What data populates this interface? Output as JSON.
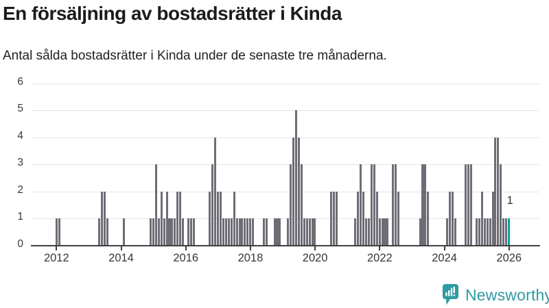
{
  "header": {
    "title": "En försäljning av bostadsrätter i Kinda",
    "subtitle": "Antal sålda bostadsrätter i Kinda under de senaste tre månaderna."
  },
  "logo": {
    "text": "Newsworthy",
    "color": "#2d9ba1"
  },
  "chart_data": {
    "type": "bar",
    "title": "En försäljning av bostadsrätter i Kinda",
    "subtitle": "Antal sålda bostadsrätter i Kinda under de senaste tre månaderna.",
    "xlabel": "",
    "ylabel": "",
    "ylim": [
      0,
      6
    ],
    "ytick_labels": [
      "0",
      "1",
      "2",
      "3",
      "4",
      "5",
      "6"
    ],
    "xtick_labels": [
      "2012",
      "2014",
      "2016",
      "2018",
      "2020",
      "2022",
      "2024",
      "2026"
    ],
    "grid": true,
    "bar_color": "#6d6d76",
    "highlight_color": "#00a2a8",
    "axis_color": "#3f3f3f",
    "gridline_color": "#e4e4e4",
    "series": [
      {
        "month": "2012-01",
        "value": 1
      },
      {
        "month": "2012-02",
        "value": 1
      },
      {
        "month": "2013-05",
        "value": 1
      },
      {
        "month": "2013-06",
        "value": 2
      },
      {
        "month": "2013-07",
        "value": 2
      },
      {
        "month": "2013-08",
        "value": 1
      },
      {
        "month": "2014-02",
        "value": 1
      },
      {
        "month": "2014-12",
        "value": 1
      },
      {
        "month": "2015-01",
        "value": 1
      },
      {
        "month": "2015-02",
        "value": 3
      },
      {
        "month": "2015-03",
        "value": 1
      },
      {
        "month": "2015-04",
        "value": 2
      },
      {
        "month": "2015-05",
        "value": 1
      },
      {
        "month": "2015-06",
        "value": 2
      },
      {
        "month": "2015-07",
        "value": 1
      },
      {
        "month": "2015-08",
        "value": 1
      },
      {
        "month": "2015-09",
        "value": 1
      },
      {
        "month": "2015-10",
        "value": 2
      },
      {
        "month": "2015-11",
        "value": 2
      },
      {
        "month": "2015-12",
        "value": 1
      },
      {
        "month": "2016-02",
        "value": 1
      },
      {
        "month": "2016-03",
        "value": 1
      },
      {
        "month": "2016-04",
        "value": 1
      },
      {
        "month": "2016-10",
        "value": 2
      },
      {
        "month": "2016-11",
        "value": 3
      },
      {
        "month": "2016-12",
        "value": 4
      },
      {
        "month": "2017-01",
        "value": 2
      },
      {
        "month": "2017-02",
        "value": 2
      },
      {
        "month": "2017-03",
        "value": 1
      },
      {
        "month": "2017-04",
        "value": 1
      },
      {
        "month": "2017-05",
        "value": 1
      },
      {
        "month": "2017-06",
        "value": 1
      },
      {
        "month": "2017-07",
        "value": 2
      },
      {
        "month": "2017-08",
        "value": 1
      },
      {
        "month": "2017-09",
        "value": 1
      },
      {
        "month": "2017-10",
        "value": 1
      },
      {
        "month": "2017-11",
        "value": 1
      },
      {
        "month": "2017-12",
        "value": 1
      },
      {
        "month": "2018-01",
        "value": 1
      },
      {
        "month": "2018-02",
        "value": 1
      },
      {
        "month": "2018-06",
        "value": 1
      },
      {
        "month": "2018-07",
        "value": 1
      },
      {
        "month": "2018-10",
        "value": 1
      },
      {
        "month": "2018-11",
        "value": 1
      },
      {
        "month": "2018-12",
        "value": 1
      },
      {
        "month": "2019-03",
        "value": 1
      },
      {
        "month": "2019-04",
        "value": 3
      },
      {
        "month": "2019-05",
        "value": 4
      },
      {
        "month": "2019-06",
        "value": 5
      },
      {
        "month": "2019-07",
        "value": 4
      },
      {
        "month": "2019-08",
        "value": 3
      },
      {
        "month": "2019-09",
        "value": 1
      },
      {
        "month": "2019-10",
        "value": 1
      },
      {
        "month": "2019-11",
        "value": 1
      },
      {
        "month": "2019-12",
        "value": 1
      },
      {
        "month": "2020-01",
        "value": 1
      },
      {
        "month": "2020-07",
        "value": 2
      },
      {
        "month": "2020-08",
        "value": 2
      },
      {
        "month": "2020-09",
        "value": 2
      },
      {
        "month": "2021-04",
        "value": 1
      },
      {
        "month": "2021-05",
        "value": 2
      },
      {
        "month": "2021-06",
        "value": 3
      },
      {
        "month": "2021-07",
        "value": 2
      },
      {
        "month": "2021-08",
        "value": 1
      },
      {
        "month": "2021-09",
        "value": 1
      },
      {
        "month": "2021-10",
        "value": 3
      },
      {
        "month": "2021-11",
        "value": 3
      },
      {
        "month": "2021-12",
        "value": 2
      },
      {
        "month": "2022-01",
        "value": 1
      },
      {
        "month": "2022-02",
        "value": 1
      },
      {
        "month": "2022-03",
        "value": 1
      },
      {
        "month": "2022-04",
        "value": 1
      },
      {
        "month": "2022-06",
        "value": 3
      },
      {
        "month": "2022-07",
        "value": 3
      },
      {
        "month": "2022-08",
        "value": 2
      },
      {
        "month": "2023-04",
        "value": 1
      },
      {
        "month": "2023-05",
        "value": 3
      },
      {
        "month": "2023-06",
        "value": 3
      },
      {
        "month": "2023-07",
        "value": 2
      },
      {
        "month": "2024-02",
        "value": 1
      },
      {
        "month": "2024-03",
        "value": 2
      },
      {
        "month": "2024-04",
        "value": 2
      },
      {
        "month": "2024-05",
        "value": 1
      },
      {
        "month": "2024-09",
        "value": 3
      },
      {
        "month": "2024-10",
        "value": 3
      },
      {
        "month": "2024-11",
        "value": 3
      },
      {
        "month": "2025-01",
        "value": 1
      },
      {
        "month": "2025-02",
        "value": 1
      },
      {
        "month": "2025-03",
        "value": 2
      },
      {
        "month": "2025-04",
        "value": 1
      },
      {
        "month": "2025-05",
        "value": 1
      },
      {
        "month": "2025-06",
        "value": 1
      },
      {
        "month": "2025-07",
        "value": 2
      },
      {
        "month": "2025-08",
        "value": 4
      },
      {
        "month": "2025-09",
        "value": 4
      },
      {
        "month": "2025-10",
        "value": 3
      },
      {
        "month": "2025-11",
        "value": 1
      },
      {
        "month": "2025-12",
        "value": 1
      }
    ],
    "highlight": {
      "month": "2026-01",
      "value": 1,
      "label": "1"
    }
  }
}
